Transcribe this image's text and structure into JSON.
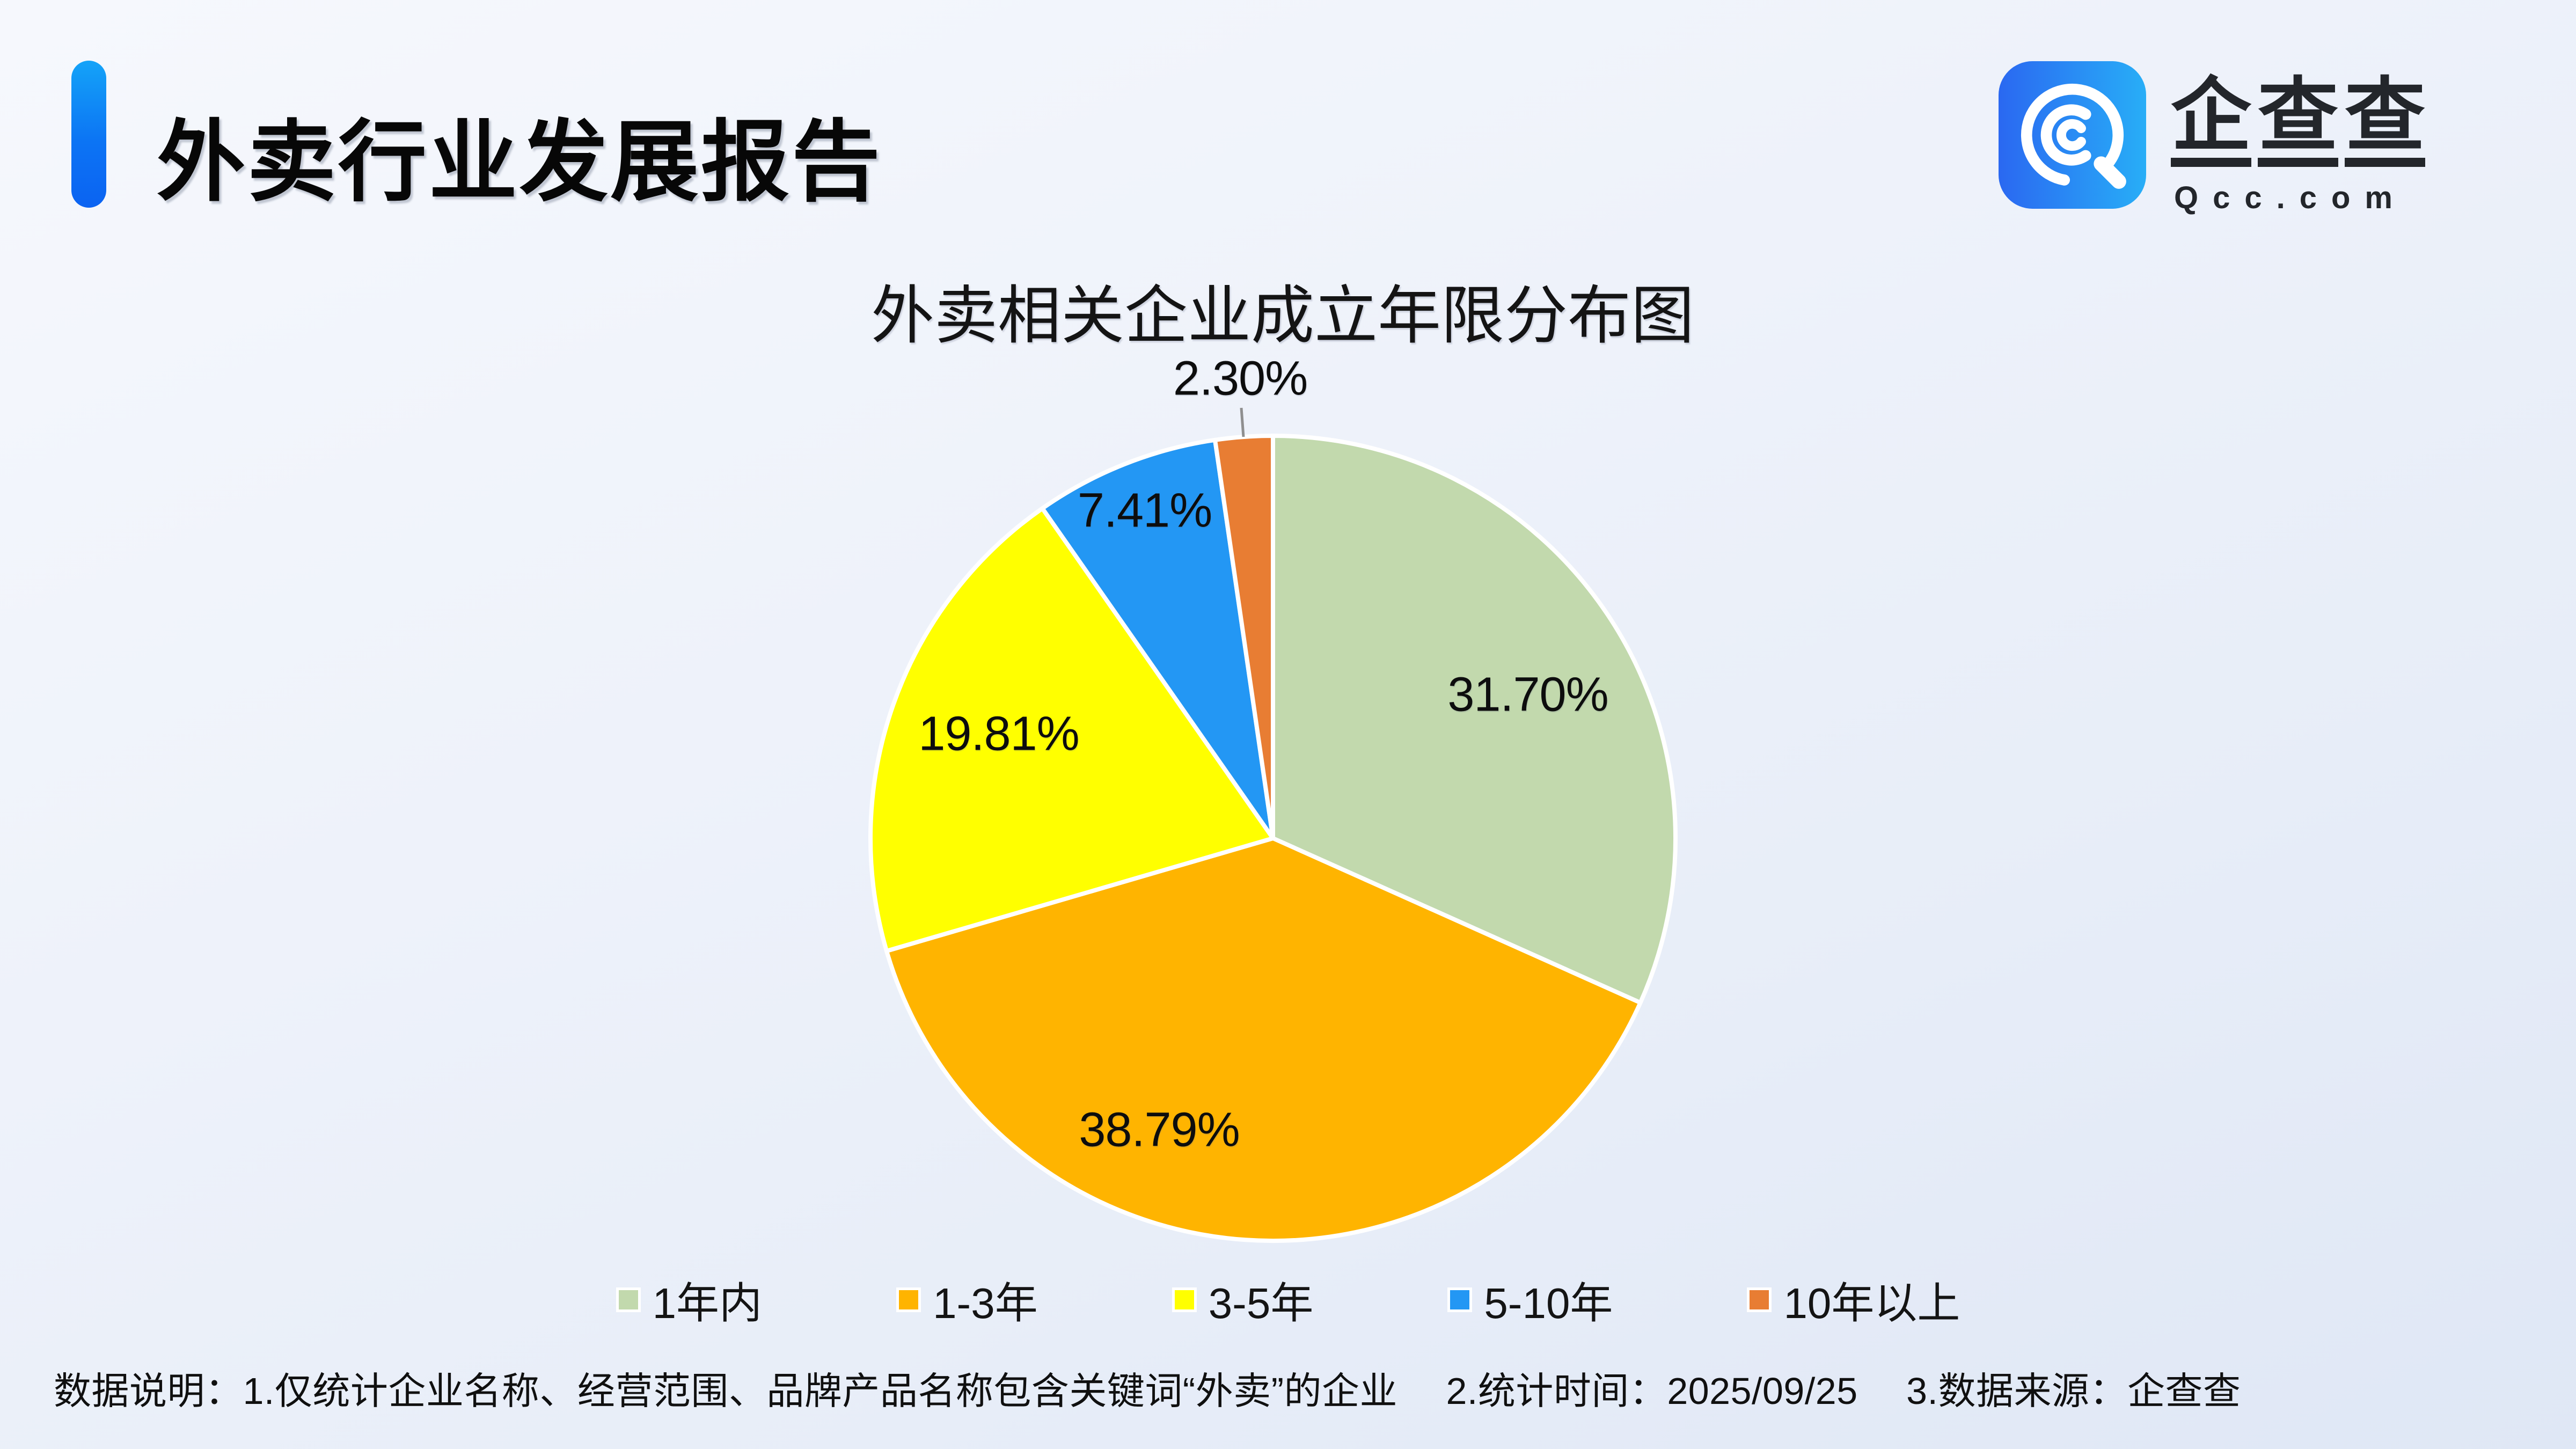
{
  "page": {
    "title": "外卖行业发展报告",
    "footnote": "数据说明：1.仅统计企业名称、经营范围、品牌产品名称包含关键词“外卖”的企业　 2.统计时间：2025/09/25　 3.数据来源：企查查"
  },
  "logo": {
    "name": "企查查",
    "domain": "Qcc.com",
    "icon": "qcc-magnifier-q-icon",
    "icon_gradient": [
      "#2a68f1",
      "#28aef7"
    ]
  },
  "chart_data": {
    "type": "pie",
    "title": "外卖相关企业成立年限分布图",
    "legend_position": "bottom",
    "label_format": "percent",
    "start_angle": "12-oclock-clockwise",
    "series": [
      {
        "name": "1年内",
        "value": 31.7,
        "label": "31.70%",
        "color": "#c2d9ad",
        "label_placement": "inside"
      },
      {
        "name": "1-3年",
        "value": 38.79,
        "label": "38.79%",
        "color": "#ffb400",
        "label_placement": "inside"
      },
      {
        "name": "3-5年",
        "value": 19.81,
        "label": "19.81%",
        "color": "#ffff00",
        "label_placement": "inside"
      },
      {
        "name": "5-10年",
        "value": 7.41,
        "label": "7.41%",
        "color": "#2397f4",
        "label_placement": "inside"
      },
      {
        "name": "10年以上",
        "value": 2.3,
        "label": "2.30%",
        "color": "#e87d33",
        "label_placement": "outside"
      }
    ]
  },
  "colors": {
    "accent_bar_top": "#14a3f8",
    "accent_bar_bottom": "#0b63f2",
    "slice_border": "#ffffff",
    "leader_line": "#8f8f8f",
    "background_top": "#f6f8fd",
    "background_bottom": "#dfe7f5"
  }
}
